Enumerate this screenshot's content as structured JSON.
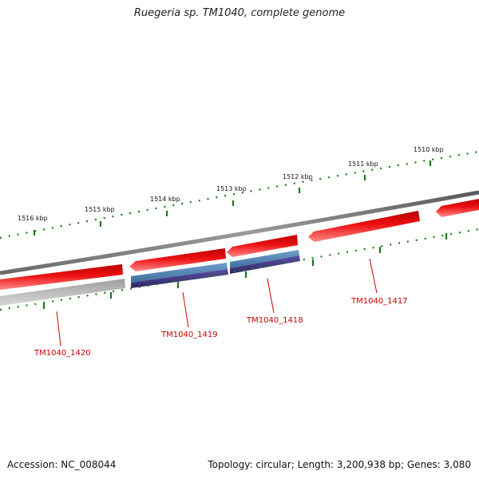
{
  "title": "Ruegeria sp. TM1040, complete genome",
  "footer": {
    "accession": "Accession: NC_008044",
    "summary": "Topology: circular; Length: 3,200,938 bp; Genes: 3,080"
  },
  "ticks": [
    {
      "label": "1516 kbp"
    },
    {
      "label": "1515 kbp"
    },
    {
      "label": "1514 kbp"
    },
    {
      "label": "1513 kbp"
    },
    {
      "label": "1512 kbp"
    },
    {
      "label": "1511 kbp"
    },
    {
      "label": "1510 kbp"
    }
  ],
  "genes": [
    {
      "label": "TM1040_1420"
    },
    {
      "label": "TM1040_1419"
    },
    {
      "label": "TM1040_1418"
    },
    {
      "label": "TM1040_1417"
    }
  ],
  "colors": {
    "backbone": "#7a7a7a",
    "gene_red": "#ee1111",
    "gene_blue": "#4a7fb0",
    "gene_purple": "#4a3e8c",
    "gene_gray": "#bdbdbd",
    "tick_green": "#1a7a1a",
    "label_red": "#cc0000"
  }
}
